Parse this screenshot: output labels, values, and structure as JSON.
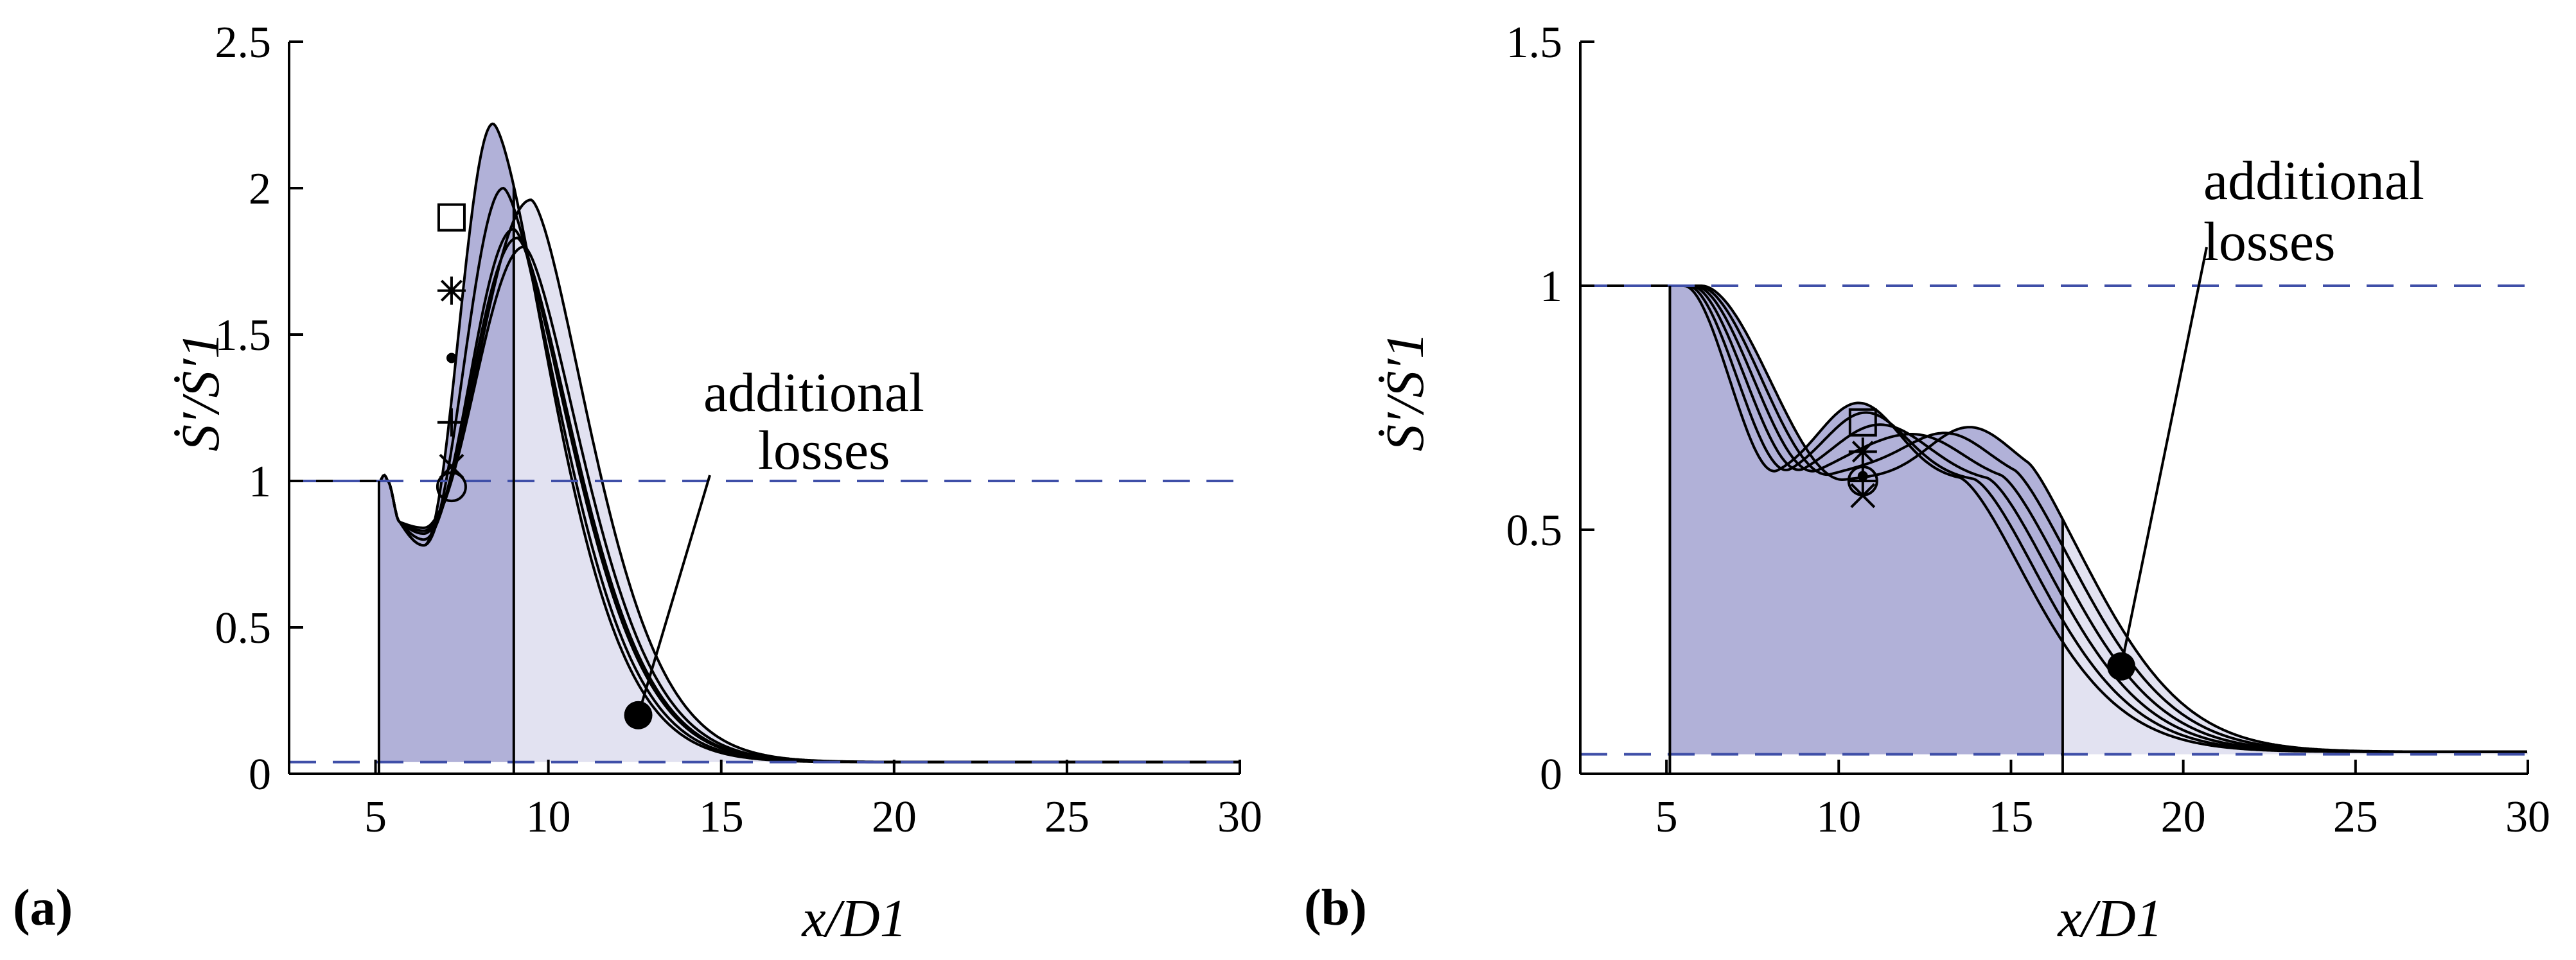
{
  "chart_data": [
    {
      "type": "line",
      "panel": "(a)",
      "xlabel": "x/D1",
      "ylabel": "Ṡ′/Ṡ′1",
      "xlim": [
        2.5,
        30
      ],
      "ylim": [
        0,
        2.5
      ],
      "xticks": [
        "5",
        "10",
        "15",
        "20",
        "25",
        "30"
      ],
      "yticks": [
        "0",
        "0.5",
        "1",
        "1.5",
        "2",
        "2.5"
      ],
      "reference_lines": [
        1.0,
        0.04
      ],
      "shaded_region_x": [
        5.1,
        9.0
      ],
      "annotation": {
        "line1": "additional",
        "line2": "losses",
        "x": 12.6,
        "y": 0.2
      },
      "marker_x": 7.2,
      "series": [
        {
          "marker": "square",
          "peak_x": 8.4,
          "peak": 2.22,
          "dip": 0.78,
          "marker_y": 1.9
        },
        {
          "marker": "star",
          "peak_x": 8.7,
          "peak": 2.0,
          "dip": 0.78,
          "marker_y": 1.65
        },
        {
          "marker": "dot",
          "peak_x": 9.0,
          "peak": 1.86,
          "dip": 0.8,
          "marker_y": 1.42
        },
        {
          "marker": "plus",
          "peak_x": 9.1,
          "peak": 1.83,
          "dip": 0.82,
          "marker_y": 1.2
        },
        {
          "marker": "x",
          "peak_x": 9.3,
          "peak": 1.8,
          "dip": 0.83,
          "marker_y": 1.05
        },
        {
          "marker": "circle",
          "peak_x": 9.5,
          "peak": 1.96,
          "dip": 0.84,
          "marker_y": 0.98
        }
      ]
    },
    {
      "type": "line",
      "panel": "(b)",
      "xlabel": "x/D1",
      "ylabel": "Ṡ′/Ṡ′1",
      "xlim": [
        2.5,
        30
      ],
      "ylim": [
        0,
        1.5
      ],
      "xticks": [
        "5",
        "10",
        "15",
        "20",
        "25",
        "30"
      ],
      "yticks": [
        "0",
        "0.5",
        "1",
        "1.5"
      ],
      "reference_lines": [
        1.0,
        0.04
      ],
      "shaded_region_x": [
        5.1,
        16.5
      ],
      "annotation": {
        "line1": "additional",
        "line2": "losses",
        "x": 18.2,
        "y": 0.22
      },
      "marker_x": 10.7,
      "series": [
        {
          "marker": "square",
          "marker_y": 0.72
        },
        {
          "marker": "star",
          "marker_y": 0.66
        },
        {
          "marker": "dot",
          "marker_y": 0.61
        },
        {
          "marker": "plus",
          "marker_y": 0.6
        },
        {
          "marker": "circle",
          "marker_y": 0.6
        },
        {
          "marker": "x",
          "marker_y": 0.57
        }
      ]
    }
  ]
}
